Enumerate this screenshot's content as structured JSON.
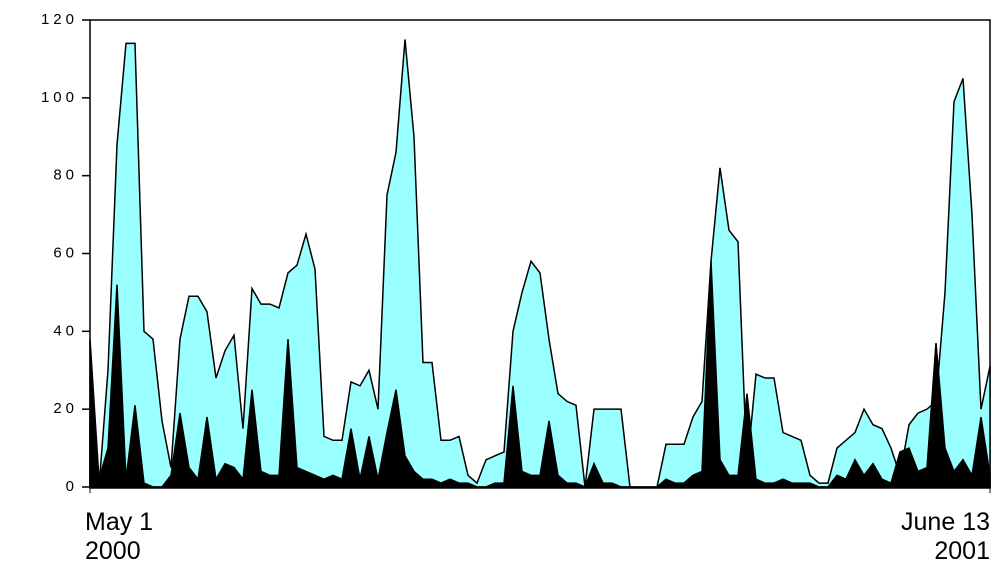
{
  "chart_data": {
    "type": "area",
    "x": [
      0,
      1,
      2,
      3,
      4,
      5,
      6,
      7,
      8,
      9,
      10,
      11,
      12,
      13,
      14,
      15,
      16,
      17,
      18,
      19,
      20,
      21,
      22,
      23,
      24,
      25,
      26,
      27,
      28,
      29,
      30,
      31,
      32,
      33,
      34,
      35,
      36,
      37,
      38,
      39,
      40,
      41,
      42,
      43,
      44,
      45,
      46,
      47,
      48,
      49,
      50,
      51,
      52,
      53,
      54,
      55,
      56,
      57,
      58,
      59,
      60,
      61,
      62,
      63,
      64,
      65,
      66,
      67,
      68,
      69,
      70,
      71,
      72,
      73,
      74,
      75,
      76,
      77,
      78,
      79,
      80,
      81,
      82,
      83,
      84,
      85,
      86,
      87,
      88,
      89,
      90,
      91,
      92,
      93,
      94,
      95,
      96,
      97,
      98,
      99,
      100
    ],
    "series": [
      {
        "color": "#99ffff",
        "values": [
          17,
          0,
          30,
          88,
          114,
          114,
          40,
          38,
          17,
          5,
          38,
          49,
          49,
          45,
          28,
          35,
          39,
          15,
          51,
          47,
          47,
          46,
          55,
          57,
          65,
          56,
          13,
          12,
          12,
          27,
          26,
          30,
          20,
          75,
          86,
          115,
          90,
          32,
          32,
          12,
          12,
          13,
          3,
          1,
          7,
          8,
          9,
          40,
          50,
          58,
          55,
          38,
          24,
          22,
          21,
          0,
          20,
          20,
          20,
          20,
          0,
          0,
          0,
          0,
          11,
          11,
          11,
          18,
          22,
          58,
          82,
          66,
          63,
          5,
          29,
          28,
          28,
          14,
          13,
          12,
          3,
          1,
          1,
          10,
          12,
          14,
          20,
          16,
          15,
          10,
          3,
          16,
          19,
          20,
          22,
          50,
          99,
          105,
          70,
          20,
          31
        ]
      },
      {
        "color": "#000000",
        "values": [
          38,
          2,
          10,
          52,
          2,
          21,
          1,
          0,
          0,
          3,
          19,
          5,
          2,
          18,
          2,
          6,
          5,
          2,
          25,
          4,
          3,
          3,
          38,
          5,
          4,
          3,
          2,
          3,
          2,
          15,
          2,
          13,
          2,
          14,
          25,
          8,
          4,
          2,
          2,
          1,
          2,
          1,
          1,
          0,
          0,
          1,
          1,
          26,
          4,
          3,
          3,
          17,
          3,
          1,
          1,
          0,
          6,
          1,
          1,
          0,
          0,
          0,
          0,
          0,
          2,
          1,
          1,
          3,
          4,
          58,
          7,
          3,
          3,
          24,
          2,
          1,
          1,
          2,
          1,
          1,
          1,
          0,
          0,
          3,
          2,
          7,
          3,
          6,
          2,
          1,
          9,
          10,
          4,
          5,
          37,
          10,
          4,
          7,
          3,
          18,
          3
        ]
      }
    ],
    "xlim": [
      0,
      100
    ],
    "xticks": [
      {
        "value": 0,
        "label": "May 1\n2000"
      },
      {
        "value": 100,
        "label": "June 13\n2001"
      }
    ],
    "ylim": [
      0,
      120
    ],
    "yticks": [
      0,
      20,
      40,
      60,
      80,
      100,
      120
    ]
  }
}
